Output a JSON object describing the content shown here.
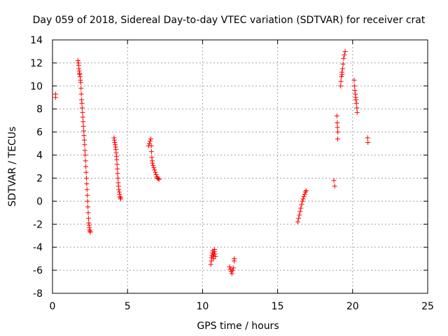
{
  "chart_data": {
    "type": "scatter",
    "title": "Day 059 of 2018, Sidereal Day-to-day VTEC variation (SDTVAR) for receiver crat",
    "xlabel": "GPS time / hours",
    "ylabel": "SDTVAR / TECUs",
    "xlim": [
      0,
      25
    ],
    "ylim": [
      -8,
      14
    ],
    "xticks": [
      0,
      5,
      10,
      15,
      20,
      25
    ],
    "yticks": [
      -8,
      -6,
      -4,
      -2,
      0,
      2,
      4,
      6,
      8,
      10,
      12,
      14
    ],
    "grid": true,
    "marker": "+",
    "colors": {
      "series": "#ff0000",
      "grid": "#a0a0a0",
      "axis": "#000000"
    },
    "series": [
      {
        "name": "SDTVAR",
        "points": [
          [
            0.2,
            9.3
          ],
          [
            0.2,
            9.0
          ],
          [
            1.7,
            12.2
          ],
          [
            1.72,
            12.0
          ],
          [
            1.74,
            11.8
          ],
          [
            1.76,
            11.5
          ],
          [
            1.78,
            11.3
          ],
          [
            1.8,
            11.1
          ],
          [
            1.82,
            11.0
          ],
          [
            1.84,
            10.8
          ],
          [
            1.86,
            10.5
          ],
          [
            1.88,
            10.3
          ],
          [
            1.9,
            9.8
          ],
          [
            1.92,
            9.3
          ],
          [
            1.94,
            8.8
          ],
          [
            1.96,
            8.5
          ],
          [
            1.98,
            8.1
          ],
          [
            2.0,
            7.7
          ],
          [
            2.02,
            7.3
          ],
          [
            2.04,
            6.9
          ],
          [
            2.06,
            6.5
          ],
          [
            2.08,
            6.1
          ],
          [
            2.1,
            5.7
          ],
          [
            2.12,
            5.3
          ],
          [
            2.14,
            4.9
          ],
          [
            2.16,
            4.4
          ],
          [
            2.18,
            4.0
          ],
          [
            2.2,
            3.5
          ],
          [
            2.22,
            3.0
          ],
          [
            2.24,
            2.5
          ],
          [
            2.26,
            2.0
          ],
          [
            2.28,
            1.5
          ],
          [
            2.3,
            1.0
          ],
          [
            2.32,
            0.5
          ],
          [
            2.34,
            0.0
          ],
          [
            2.36,
            -0.5
          ],
          [
            2.38,
            -1.0
          ],
          [
            2.4,
            -1.5
          ],
          [
            2.42,
            -1.9
          ],
          [
            2.44,
            -2.1
          ],
          [
            2.46,
            -2.3
          ],
          [
            2.48,
            -2.5
          ],
          [
            2.5,
            -2.6
          ],
          [
            2.52,
            -2.7
          ],
          [
            4.1,
            5.5
          ],
          [
            4.12,
            5.3
          ],
          [
            4.15,
            5.1
          ],
          [
            4.18,
            4.9
          ],
          [
            4.2,
            4.7
          ],
          [
            4.22,
            4.5
          ],
          [
            4.24,
            4.2
          ],
          [
            4.26,
            3.9
          ],
          [
            4.28,
            3.6
          ],
          [
            4.3,
            3.2
          ],
          [
            4.32,
            2.8
          ],
          [
            4.34,
            2.4
          ],
          [
            4.36,
            2.0
          ],
          [
            4.38,
            1.6
          ],
          [
            4.4,
            1.3
          ],
          [
            4.42,
            1.0
          ],
          [
            4.45,
            0.8
          ],
          [
            4.48,
            0.6
          ],
          [
            4.5,
            0.4
          ],
          [
            4.52,
            0.3
          ],
          [
            4.55,
            0.2
          ],
          [
            6.4,
            4.8
          ],
          [
            6.45,
            5.0
          ],
          [
            6.5,
            5.2
          ],
          [
            6.55,
            5.4
          ],
          [
            6.58,
            4.8
          ],
          [
            6.6,
            4.3
          ],
          [
            6.62,
            3.8
          ],
          [
            6.64,
            3.5
          ],
          [
            6.66,
            3.3
          ],
          [
            6.7,
            3.1
          ],
          [
            6.75,
            2.9
          ],
          [
            6.8,
            2.7
          ],
          [
            6.85,
            2.5
          ],
          [
            6.9,
            2.3
          ],
          [
            6.95,
            2.1
          ],
          [
            7.0,
            2.0
          ],
          [
            7.05,
            1.95
          ],
          [
            7.1,
            1.9
          ],
          [
            10.55,
            -5.5
          ],
          [
            10.58,
            -5.2
          ],
          [
            10.6,
            -4.9
          ],
          [
            10.62,
            -4.7
          ],
          [
            10.65,
            -4.5
          ],
          [
            10.68,
            -4.3
          ],
          [
            10.7,
            -4.8
          ],
          [
            10.72,
            -5.0
          ],
          [
            10.75,
            -4.6
          ],
          [
            10.78,
            -4.4
          ],
          [
            10.8,
            -4.2
          ],
          [
            10.82,
            -4.6
          ],
          [
            10.85,
            -4.8
          ],
          [
            11.8,
            -5.7
          ],
          [
            11.85,
            -5.9
          ],
          [
            11.9,
            -6.1
          ],
          [
            11.95,
            -6.3
          ],
          [
            12.0,
            -6.0
          ],
          [
            12.05,
            -5.8
          ],
          [
            12.1,
            -5.2
          ],
          [
            12.12,
            -5.0
          ],
          [
            16.35,
            -1.8
          ],
          [
            16.4,
            -1.5
          ],
          [
            16.45,
            -1.2
          ],
          [
            16.5,
            -0.9
          ],
          [
            16.55,
            -0.6
          ],
          [
            16.6,
            -0.3
          ],
          [
            16.65,
            0.0
          ],
          [
            16.7,
            0.2
          ],
          [
            16.75,
            0.4
          ],
          [
            16.8,
            0.6
          ],
          [
            16.85,
            0.8
          ],
          [
            16.9,
            0.9
          ],
          [
            18.75,
            1.8
          ],
          [
            18.8,
            1.3
          ],
          [
            18.95,
            7.4
          ],
          [
            18.97,
            6.8
          ],
          [
            18.99,
            6.4
          ],
          [
            19.01,
            6.0
          ],
          [
            19.0,
            5.4
          ],
          [
            19.2,
            10.0
          ],
          [
            19.22,
            10.4
          ],
          [
            19.25,
            10.8
          ],
          [
            19.28,
            11.2
          ],
          [
            19.3,
            11.0
          ],
          [
            19.33,
            11.5
          ],
          [
            19.36,
            11.9
          ],
          [
            19.4,
            12.4
          ],
          [
            19.45,
            12.7
          ],
          [
            19.5,
            13.0
          ],
          [
            20.1,
            10.5
          ],
          [
            20.12,
            10.0
          ],
          [
            20.15,
            9.6
          ],
          [
            20.18,
            9.3
          ],
          [
            20.2,
            9.0
          ],
          [
            20.22,
            8.8
          ],
          [
            20.25,
            8.5
          ],
          [
            20.28,
            8.1
          ],
          [
            20.3,
            7.7
          ],
          [
            21.0,
            5.5
          ],
          [
            21.02,
            5.1
          ]
        ]
      }
    ]
  }
}
